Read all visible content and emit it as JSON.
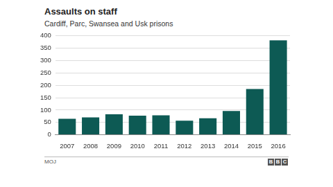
{
  "chart_data": {
    "type": "bar",
    "title": "Assaults on staff",
    "subtitle": "Cardiff, Parc, Swansea and Usk prisons",
    "categories": [
      "2007",
      "2008",
      "2009",
      "2010",
      "2011",
      "2012",
      "2013",
      "2014",
      "2015",
      "2016"
    ],
    "values": [
      65,
      70,
      83,
      77,
      79,
      57,
      67,
      96,
      185,
      382
    ],
    "color": "#0d5a54",
    "ylim": [
      0,
      400
    ],
    "yticks": [
      0,
      50,
      100,
      150,
      200,
      250,
      300,
      350,
      400
    ],
    "grid": true,
    "legend": "none",
    "source": "MOJ",
    "brand": "BBC"
  }
}
